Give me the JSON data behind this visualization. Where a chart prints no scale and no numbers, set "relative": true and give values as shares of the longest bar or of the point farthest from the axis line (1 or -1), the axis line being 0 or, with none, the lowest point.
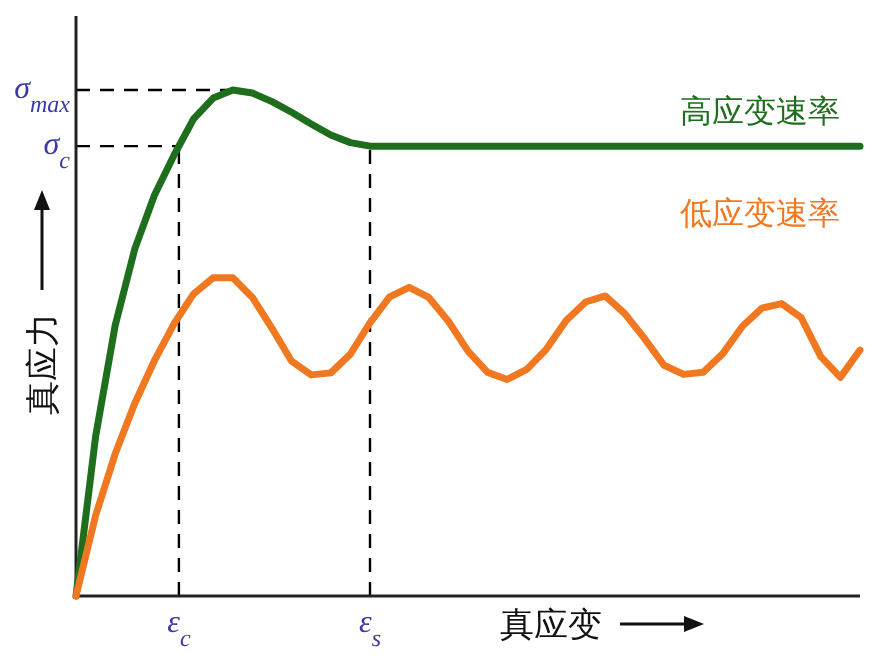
{
  "chart_data": {
    "type": "line",
    "relative": true,
    "xlabel": "真应变",
    "ylabel": "真应力",
    "line_style": "solid",
    "categories": [
      null,
      null,
      null,
      null,
      null,
      null,
      null,
      null,
      null,
      null,
      null,
      null,
      null,
      null,
      null,
      null,
      null,
      null,
      null,
      null,
      null,
      null,
      null,
      null,
      null,
      null,
      null,
      null,
      null,
      null,
      null,
      null,
      null,
      null,
      null,
      null,
      null,
      null,
      null,
      null,
      null
    ],
    "series": [
      {
        "name": "高应变速率",
        "color": "#1e6e1e",
        "values": [
          0,
          0.315,
          0.535,
          0.686,
          0.792,
          0.871,
          0.943,
          0.984,
          1,
          0.994,
          0.977,
          0.956,
          0.933,
          0.911,
          0.896,
          0.889,
          0.889,
          0.889,
          0.889,
          0.889,
          0.889,
          0.889,
          0.889,
          0.889,
          0.889,
          0.889,
          0.889,
          0.889,
          0.889,
          0.889,
          0.889,
          0.889,
          0.889,
          0.889,
          0.889,
          0.889,
          0.889,
          0.889,
          0.889,
          0.889,
          0.889
        ]
      },
      {
        "name": "低应变速率",
        "color": "#f07820",
        "values": [
          0,
          0.159,
          0.281,
          0.381,
          0.465,
          0.538,
          0.597,
          0.629,
          0.629,
          0.59,
          0.529,
          0.464,
          0.437,
          0.441,
          0.478,
          0.54,
          0.591,
          0.61,
          0.59,
          0.543,
          0.484,
          0.442,
          0.428,
          0.448,
          0.488,
          0.544,
          0.581,
          0.593,
          0.558,
          0.509,
          0.456,
          0.438,
          0.442,
          0.479,
          0.533,
          0.569,
          0.578,
          0.55,
          0.473,
          0.432,
          0.486
        ]
      }
    ],
    "annotations": [
      "σ$_{max}$",
      "σ$_{c}$",
      "ε$_{c}$",
      "ε$_{s}$"
    ]
  }
}
